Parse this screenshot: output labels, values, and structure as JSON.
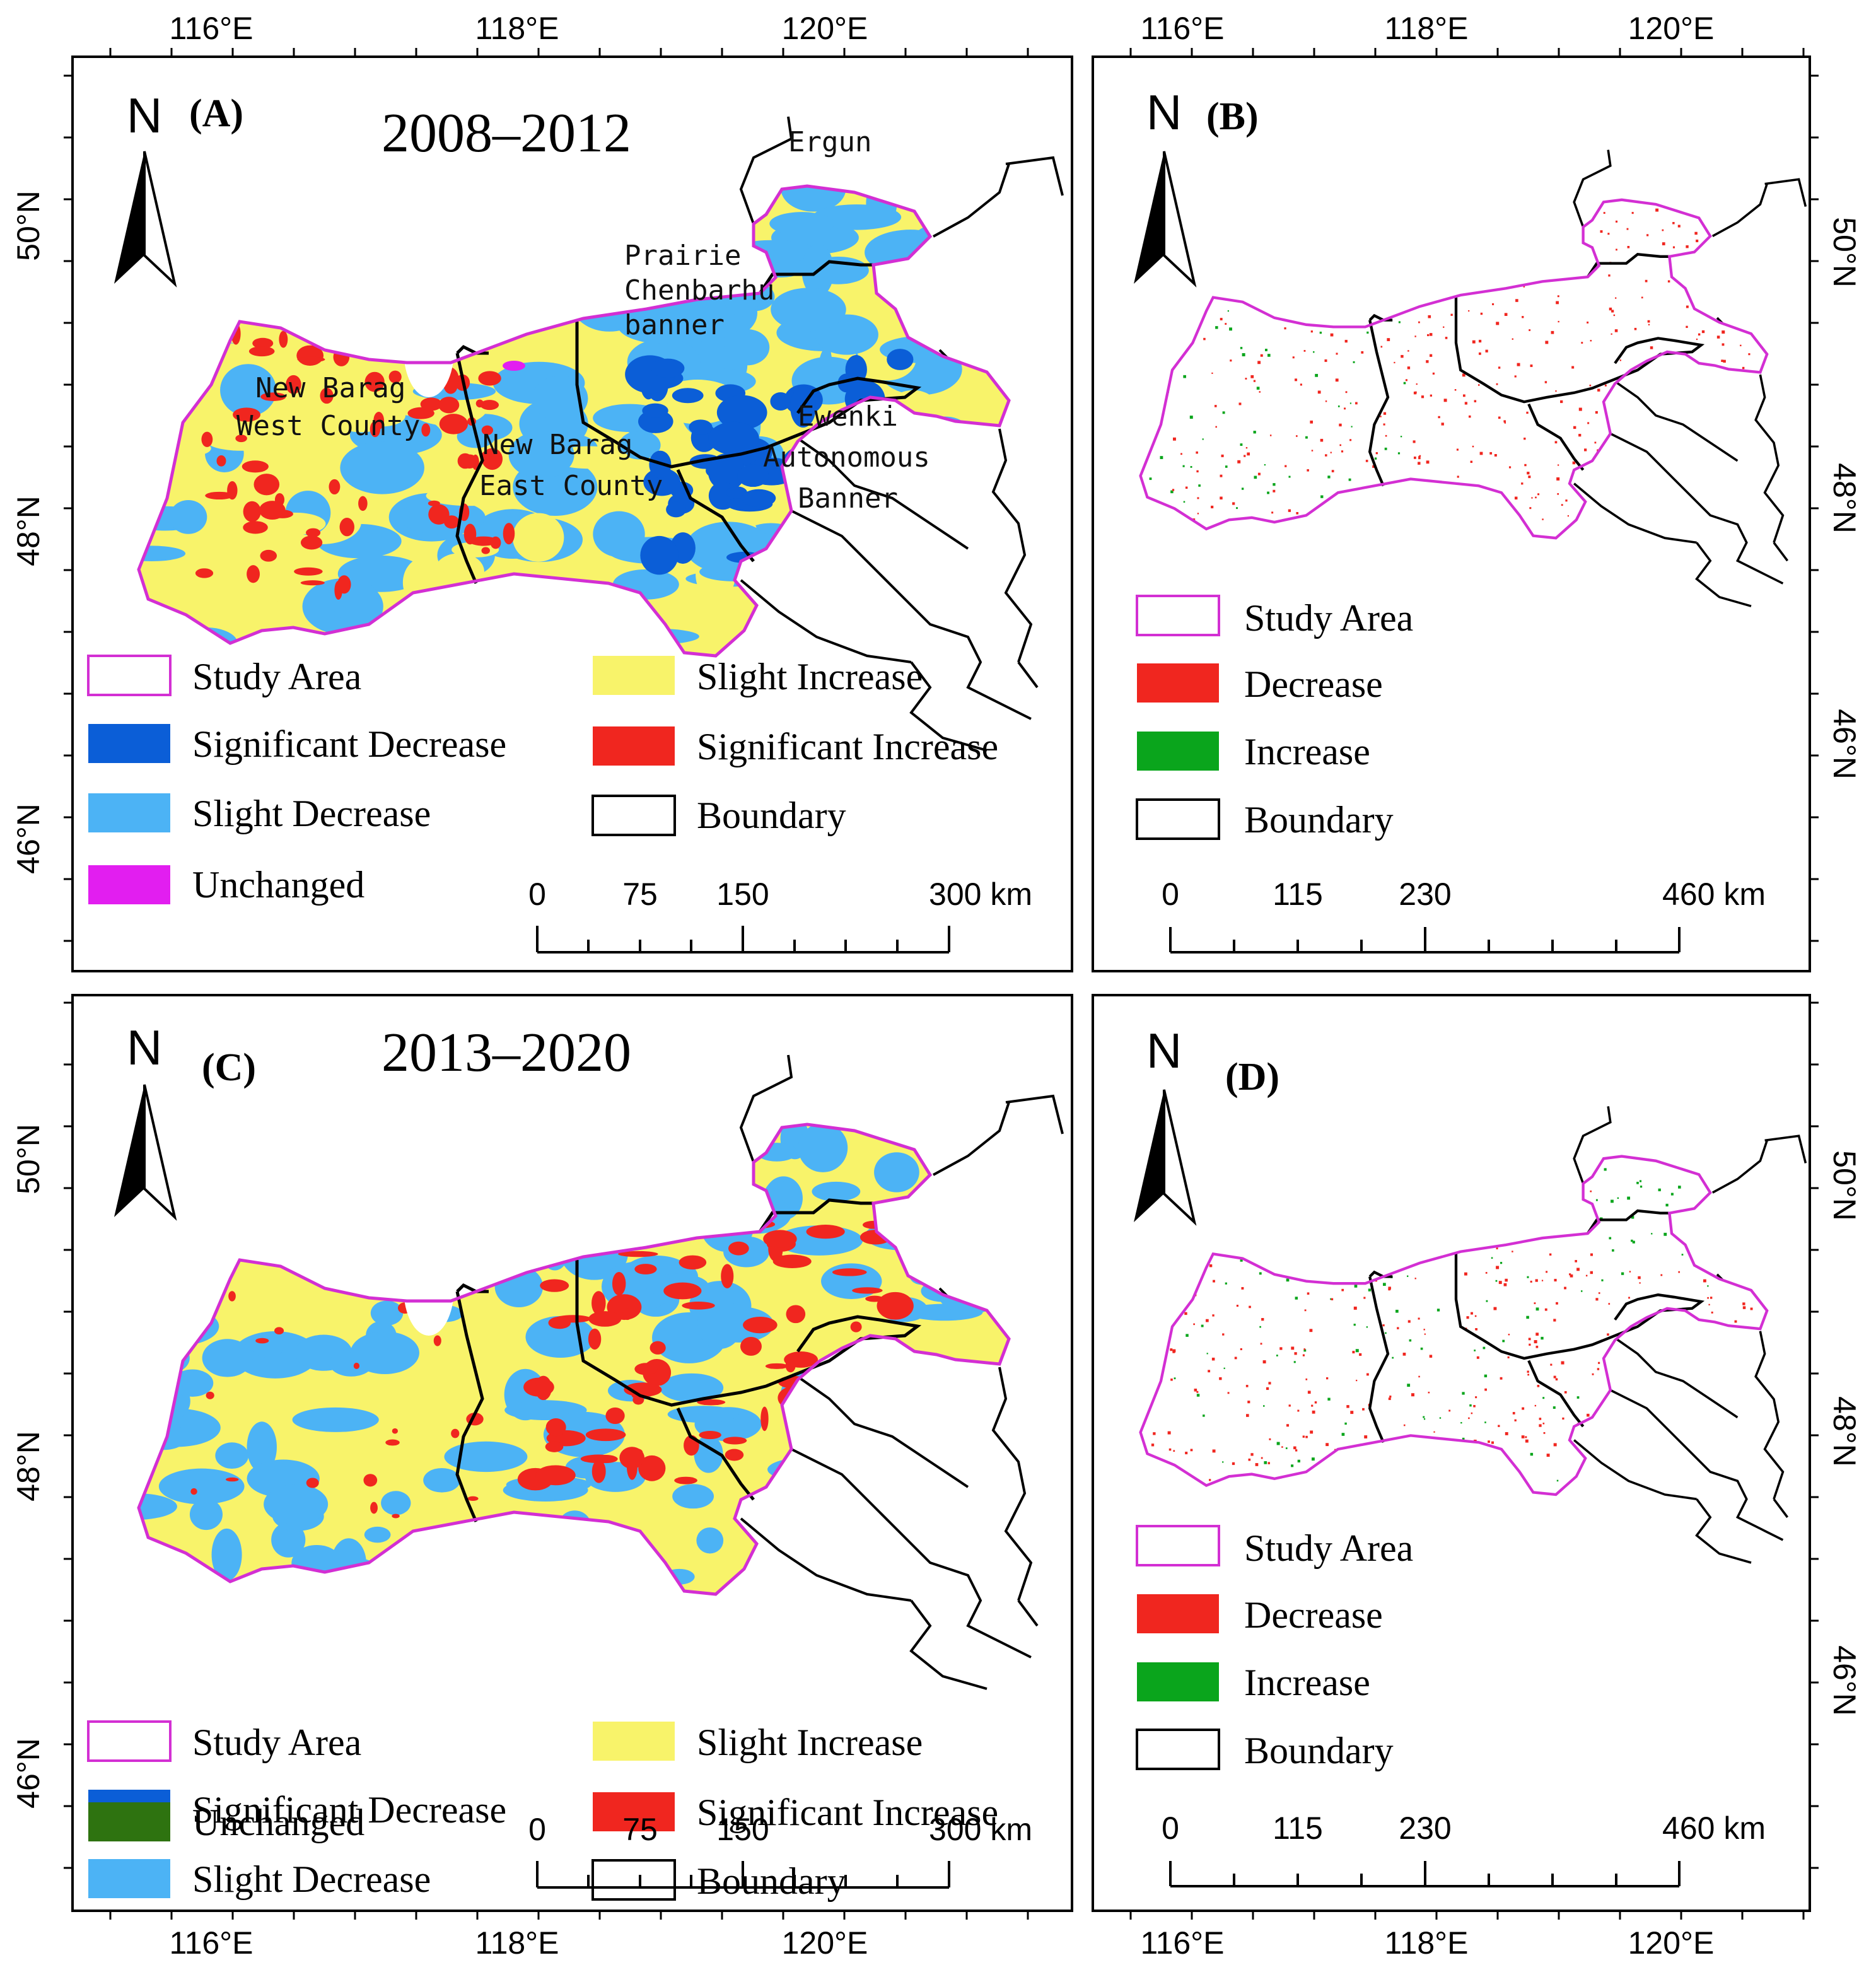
{
  "colors": {
    "study_area": "#d32fd3",
    "significant_decrease": "#0b5ed7",
    "slight_decrease": "#4cb3f5",
    "slight_increase": "#f8f36a",
    "significant_increase": "#f0261f",
    "unchanged_A": "#e21ef0",
    "unchanged_C": "#2e7310",
    "decrease": "#f0261f",
    "increase": "#0aa51c",
    "boundary": "#000000"
  },
  "axes": {
    "lon_top_labels": [
      "116°E",
      "118°E",
      "120°E"
    ],
    "lon_bottom_labels": [
      "116°E",
      "118°E",
      "120°E"
    ],
    "lat_left_labels": [
      "50°N",
      "48°N",
      "46°N"
    ],
    "lat_right_labels": [
      "50°N",
      "48°N",
      "46°N"
    ]
  },
  "panels": {
    "A": {
      "label": "(A)",
      "title": "2008–2012",
      "north": "N",
      "regions": {
        "ergun": "Ergun",
        "prairie_line1": "Prairie",
        "prairie_line2": "Chenbarhu",
        "prairie_line3": "banner",
        "nbw_line1": "New Barag",
        "nbw_line2": "West County",
        "nbe_line1": "New Barag",
        "nbe_line2": "East County",
        "ewenki_line1": "Ewenki",
        "ewenki_line2": "Autonomous",
        "ewenki_line3": "Banner"
      },
      "legend": {
        "study_area": "Study Area",
        "significant_decrease": "Significant Decrease",
        "slight_decrease": "Slight Decrease",
        "unchanged": "Unchanged",
        "slight_increase": "Slight Increase",
        "significant_increase": "Significant Increase",
        "boundary": "Boundary"
      },
      "scale": {
        "labels": [
          "0",
          "75",
          "150",
          "300 km"
        ]
      }
    },
    "B": {
      "label": "(B)",
      "north": "N",
      "legend": {
        "study_area": "Study Area",
        "decrease": "Decrease",
        "increase": "Increase",
        "boundary": "Boundary"
      },
      "scale": {
        "labels": [
          "0",
          "115",
          "230",
          "460 km"
        ]
      }
    },
    "C": {
      "label": "(C)",
      "title": "2013–2020",
      "north": "N",
      "legend": {
        "study_area": "Study Area",
        "significant_decrease": "Significant Decrease",
        "slight_decrease": "Slight Decrease",
        "unchanged": "Unchanged",
        "slight_increase": "Slight Increase",
        "significant_increase": "Significant Increase",
        "boundary": "Boundary"
      },
      "scale": {
        "labels": [
          "0",
          "75",
          "150",
          "300 km"
        ]
      }
    },
    "D": {
      "label": "(D)",
      "north": "N",
      "legend": {
        "study_area": "Study Area",
        "decrease": "Decrease",
        "increase": "Increase",
        "boundary": "Boundary"
      },
      "scale": {
        "labels": [
          "0",
          "115",
          "230",
          "460 km"
        ]
      }
    }
  }
}
